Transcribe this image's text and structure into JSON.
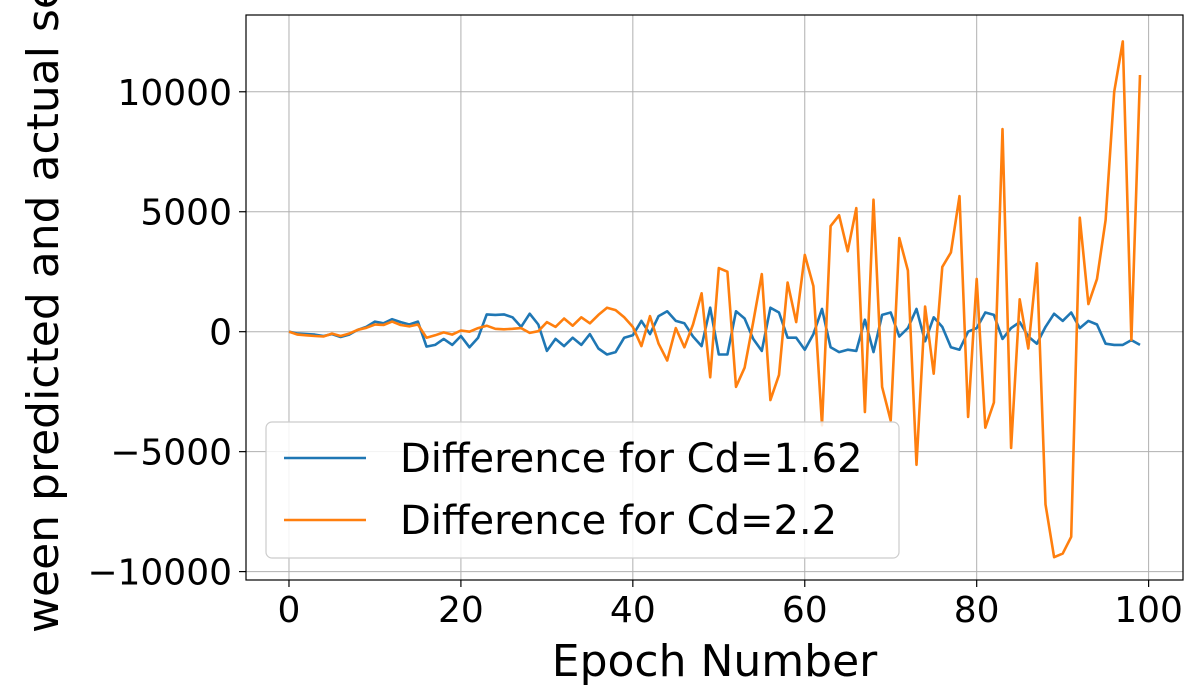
{
  "chart_data": {
    "type": "line",
    "title": "",
    "xlabel": "Epoch Number",
    "ylabel": "ween predicted and actual se",
    "xlim": [
      -5,
      104
    ],
    "ylim": [
      -10350,
      13200
    ],
    "xticks": [
      0,
      20,
      40,
      60,
      80,
      100
    ],
    "yticks": [
      -10000,
      -5000,
      0,
      5000,
      10000
    ],
    "xtick_labels": [
      "0",
      "20",
      "40",
      "60",
      "80",
      "100"
    ],
    "ytick_labels": [
      "−10000",
      "−5000",
      "0",
      "5000",
      "10000"
    ],
    "grid": true,
    "legend_position": "lower-left",
    "x": [
      0,
      1,
      2,
      3,
      4,
      5,
      6,
      7,
      8,
      9,
      10,
      11,
      12,
      13,
      14,
      15,
      16,
      17,
      18,
      19,
      20,
      21,
      22,
      23,
      24,
      25,
      26,
      27,
      28,
      29,
      30,
      31,
      32,
      33,
      34,
      35,
      36,
      37,
      38,
      39,
      40,
      41,
      42,
      43,
      44,
      45,
      46,
      47,
      48,
      49,
      50,
      51,
      52,
      53,
      54,
      55,
      56,
      57,
      58,
      59,
      60,
      61,
      62,
      63,
      64,
      65,
      66,
      67,
      68,
      69,
      70,
      71,
      72,
      73,
      74,
      75,
      76,
      77,
      78,
      79,
      80,
      81,
      82,
      83,
      84,
      85,
      86,
      87,
      88,
      89,
      90,
      91,
      92,
      93,
      94,
      95,
      96,
      97,
      98,
      99
    ],
    "series": [
      {
        "name": "Difference for Cd=1.62",
        "color": "#1f77b4",
        "values": [
          0,
          -80,
          -100,
          -120,
          -180,
          -100,
          -220,
          -120,
          80,
          200,
          420,
          350,
          520,
          400,
          300,
          420,
          -620,
          -550,
          -300,
          -550,
          -180,
          -650,
          -250,
          720,
          700,
          720,
          600,
          200,
          750,
          300,
          -800,
          -300,
          -600,
          -250,
          -550,
          -100,
          -700,
          -950,
          -850,
          -250,
          -150,
          450,
          -100,
          650,
          850,
          450,
          350,
          -200,
          -600,
          1000,
          -950,
          -950,
          850,
          550,
          -300,
          -800,
          1000,
          800,
          -250,
          -250,
          -750,
          -100,
          950,
          -650,
          -850,
          -750,
          -800,
          500,
          -850,
          700,
          800,
          -200,
          150,
          950,
          -400,
          600,
          200,
          -650,
          -750,
          0,
          150,
          800,
          700,
          -300,
          150,
          400,
          -200,
          -500,
          200,
          750,
          450,
          800,
          150,
          450,
          300,
          -500,
          -550,
          -550,
          -350,
          -550
        ]
      },
      {
        "name": "Difference for Cd=2.2",
        "color": "#ff7f0e",
        "values": [
          0,
          -120,
          -150,
          -180,
          -200,
          -80,
          -180,
          -80,
          80,
          160,
          300,
          280,
          420,
          280,
          220,
          300,
          -250,
          -150,
          -30,
          -120,
          50,
          0,
          150,
          250,
          120,
          100,
          120,
          150,
          -50,
          20,
          400,
          200,
          550,
          250,
          600,
          350,
          700,
          1000,
          900,
          600,
          200,
          -600,
          650,
          -500,
          -1200,
          150,
          -650,
          300,
          1600,
          -1900,
          2650,
          2500,
          -2300,
          -1500,
          400,
          2400,
          -2850,
          -1800,
          2050,
          400,
          3200,
          1900,
          -3900,
          4400,
          4850,
          3350,
          5150,
          -3350,
          5500,
          -2300,
          -3700,
          3900,
          2550,
          -5550,
          1050,
          -1750,
          2700,
          3300,
          5650,
          -3550,
          2200,
          -4000,
          -2950,
          8450,
          -4850,
          1350,
          -700,
          2850,
          -7200,
          -9400,
          -9250,
          -8550,
          4750,
          1150,
          2200,
          4650,
          10000,
          12100,
          -350,
          10700
        ]
      }
    ]
  }
}
